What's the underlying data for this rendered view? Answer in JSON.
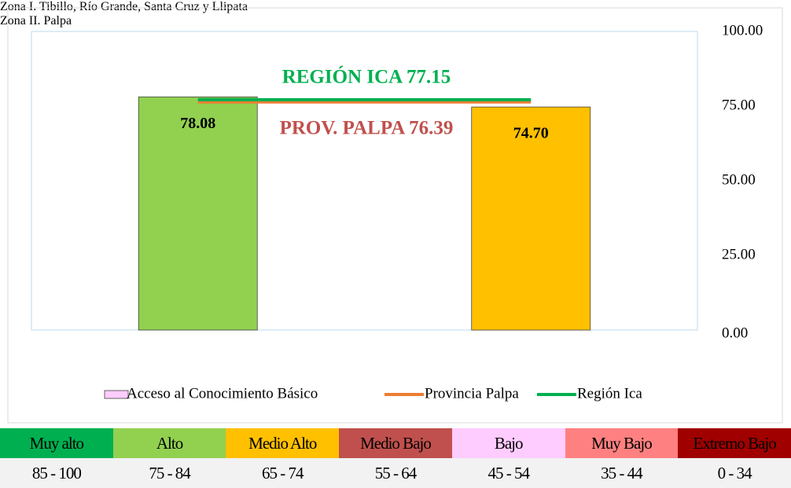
{
  "chart_data": {
    "type": "bar",
    "categories": [
      "Zona I. Tibillo, Río Grande, Santa Cruz y Llipata",
      "Zona II. Palpa"
    ],
    "series": [
      {
        "name": "Acceso al Conocimiento Básico",
        "type": "bar",
        "color": "#ffccff",
        "bar_colors": [
          "#92d050",
          "#ffc000"
        ],
        "values": [
          78.08,
          74.7
        ],
        "value_labels": [
          "78.08",
          "74.70"
        ]
      },
      {
        "name": "Provincia Palpa",
        "type": "line",
        "color": "#ed7d31",
        "values": [
          76.39,
          76.39
        ]
      },
      {
        "name": "Región Ica",
        "type": "line",
        "color": "#00b050",
        "values": [
          77.15,
          77.15
        ]
      }
    ],
    "annotations": [
      {
        "text": "REGIÓN ICA 77.15",
        "color": "#00b050"
      },
      {
        "text": "PROV. PALPA 76.39",
        "color": "#c0504d"
      }
    ],
    "ylim": [
      0,
      100
    ],
    "yticks": [
      {
        "value": 0,
        "label": "0.00"
      },
      {
        "value": 25,
        "label": "25.00"
      },
      {
        "value": 50,
        "label": "50.00"
      },
      {
        "value": 75,
        "label": "75.00"
      },
      {
        "value": 100,
        "label": "100.00"
      }
    ],
    "legend": "bottom"
  },
  "scale_legend": [
    {
      "label": "Muy alto",
      "range": "85 - 100",
      "color": "#00b050"
    },
    {
      "label": "Alto",
      "range": "75 - 84",
      "color": "#92d050"
    },
    {
      "label": "Medio Alto",
      "range": "65 - 74",
      "color": "#ffc000"
    },
    {
      "label": "Medio Bajo",
      "range": "55 - 64",
      "color": "#c0504d"
    },
    {
      "label": "Bajo",
      "range": "45 - 54",
      "color": "#ffccff"
    },
    {
      "label": "Muy Bajo",
      "range": "35 - 44",
      "color": "#ff8080"
    },
    {
      "label": "Extremo Bajo",
      "range": "0 - 34",
      "color": "#a00000"
    }
  ]
}
